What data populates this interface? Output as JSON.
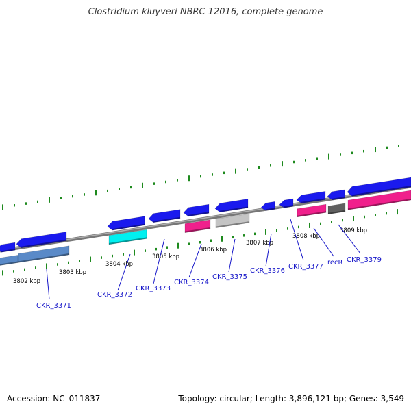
{
  "title": "Clostridium kluyveri NBRC 12016, complete genome",
  "footer": {
    "accession": "Accession: NC_011837",
    "topology": "Topology: circular; Length: 3,896,121 bp; Genes: 3,549"
  },
  "colors": {
    "backbone": "#8c8c8c",
    "tick": "#1e8a1e",
    "gene_blue": "#1a1aee",
    "gene_cyan": "#00f0f0",
    "gene_pink": "#f0208c",
    "gene_silver": "#c4c4c4",
    "gene_steel": "#5a8ac8",
    "gene_gray": "#606060",
    "label": "#1414c8"
  },
  "kbp_labels": [
    "3802 kbp",
    "3803 kbp",
    "3804 kbp",
    "3805 kbp",
    "3806 kbp",
    "3807 kbp",
    "3808 kbp",
    "3809 kbp"
  ],
  "gene_labels": [
    "CKR_3371",
    "CKR_3372",
    "CKR_3373",
    "CKR_3374",
    "CKR_3375",
    "CKR_3376",
    "CKR_3377",
    "recR",
    "CKR_3379"
  ]
}
